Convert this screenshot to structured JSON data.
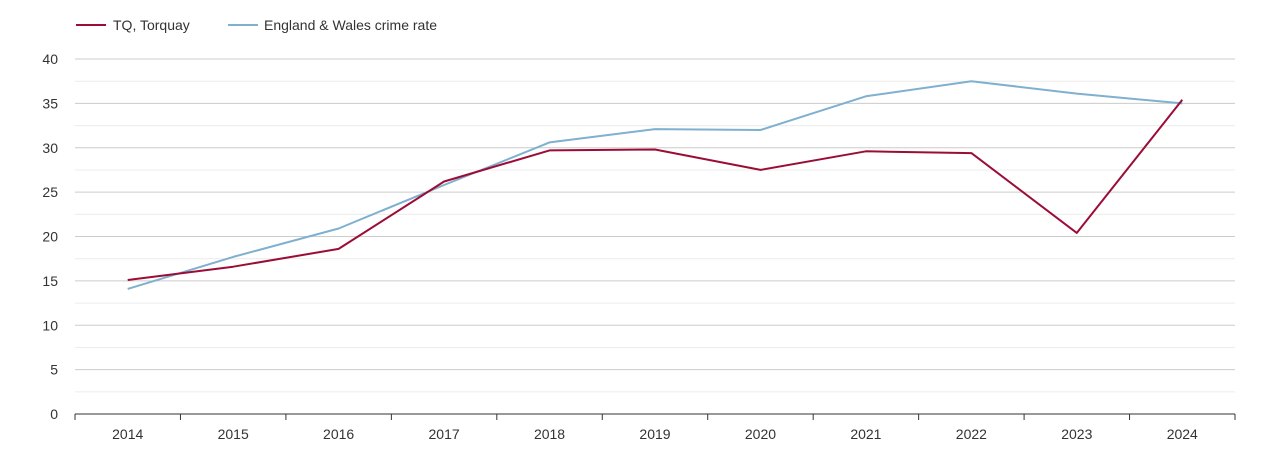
{
  "chart_data": {
    "type": "line",
    "title": "",
    "xlabel": "",
    "ylabel": "",
    "x": [
      "2014",
      "2015",
      "2016",
      "2017",
      "2018",
      "2019",
      "2020",
      "2021",
      "2022",
      "2023",
      "2024"
    ],
    "ylim": [
      0,
      40
    ],
    "yticks": [
      "0",
      "5",
      "10",
      "15",
      "20",
      "25",
      "30",
      "35",
      "40"
    ],
    "grid": true,
    "legend_position": "top-left",
    "series": [
      {
        "name": "TQ, Torquay",
        "color": "#9b0d36",
        "values": [
          15.1,
          16.6,
          18.6,
          26.2,
          29.7,
          29.8,
          27.5,
          29.6,
          29.4,
          20.4,
          35.4
        ]
      },
      {
        "name": "England & Wales crime rate",
        "color": "#7fb0cf",
        "values": [
          14.1,
          17.7,
          20.9,
          25.8,
          30.6,
          32.1,
          32.0,
          35.8,
          37.5,
          36.1,
          35.0
        ]
      }
    ]
  }
}
